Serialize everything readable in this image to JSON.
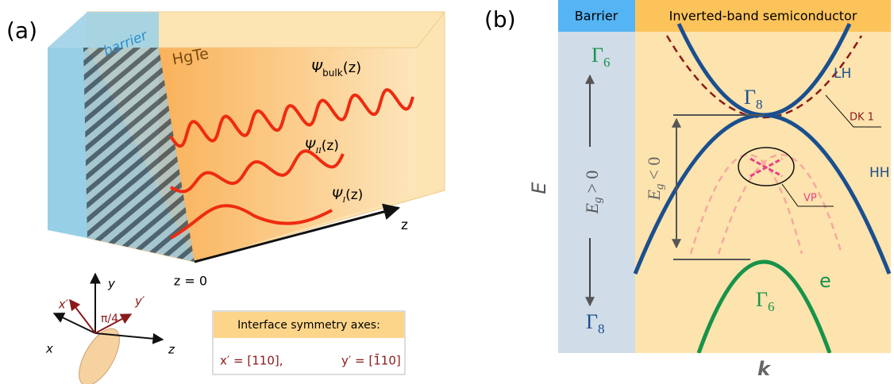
{
  "panel_a": {
    "label": "(a)",
    "barrier": "barrier",
    "material": "HgTe",
    "wavefunctions": [
      {
        "symbol": "Ψ",
        "subscript": "bulk",
        "argument": "(z)"
      },
      {
        "symbol": "Ψ",
        "subscript": "II",
        "argument": "(z)"
      },
      {
        "symbol": "Ψ",
        "subscript": "I",
        "argument": "(z)"
      }
    ],
    "z_axis": "z",
    "z_origin": "z = 0",
    "axes": {
      "y": "y",
      "x_prime": "x′",
      "angle": "π/4",
      "y_prime": "y′",
      "x": "x",
      "z": "z"
    },
    "symmetry_box": {
      "title": "Interface symmetry axes:",
      "x_prime": "x′ = [110],",
      "y_prime": "y′ = [1̄10]"
    }
  },
  "panel_b": {
    "label": "(b)",
    "barrier_header": "Barrier",
    "semiconductor_header": "Inverted-band semiconductor",
    "barrier_gamma_top": {
      "symbol": "Γ",
      "subscript": "6"
    },
    "barrier_gap": {
      "symbol": "E",
      "subscript": "g",
      "relation": "> 0"
    },
    "barrier_gamma_bottom": {
      "symbol": "Γ",
      "subscript": "8"
    },
    "bands": {
      "lh": "LH",
      "gamma8": {
        "symbol": "Γ",
        "subscript": "8"
      },
      "dk": "DK 1",
      "hh": "HH",
      "vp": "VP",
      "e": "e",
      "gamma6": {
        "symbol": "Γ",
        "subscript": "6"
      }
    },
    "inverted_gap": {
      "symbol": "E",
      "subscript": "g",
      "relation": "< 0"
    },
    "energy_axis": "E",
    "momentum_axis": "k"
  }
}
